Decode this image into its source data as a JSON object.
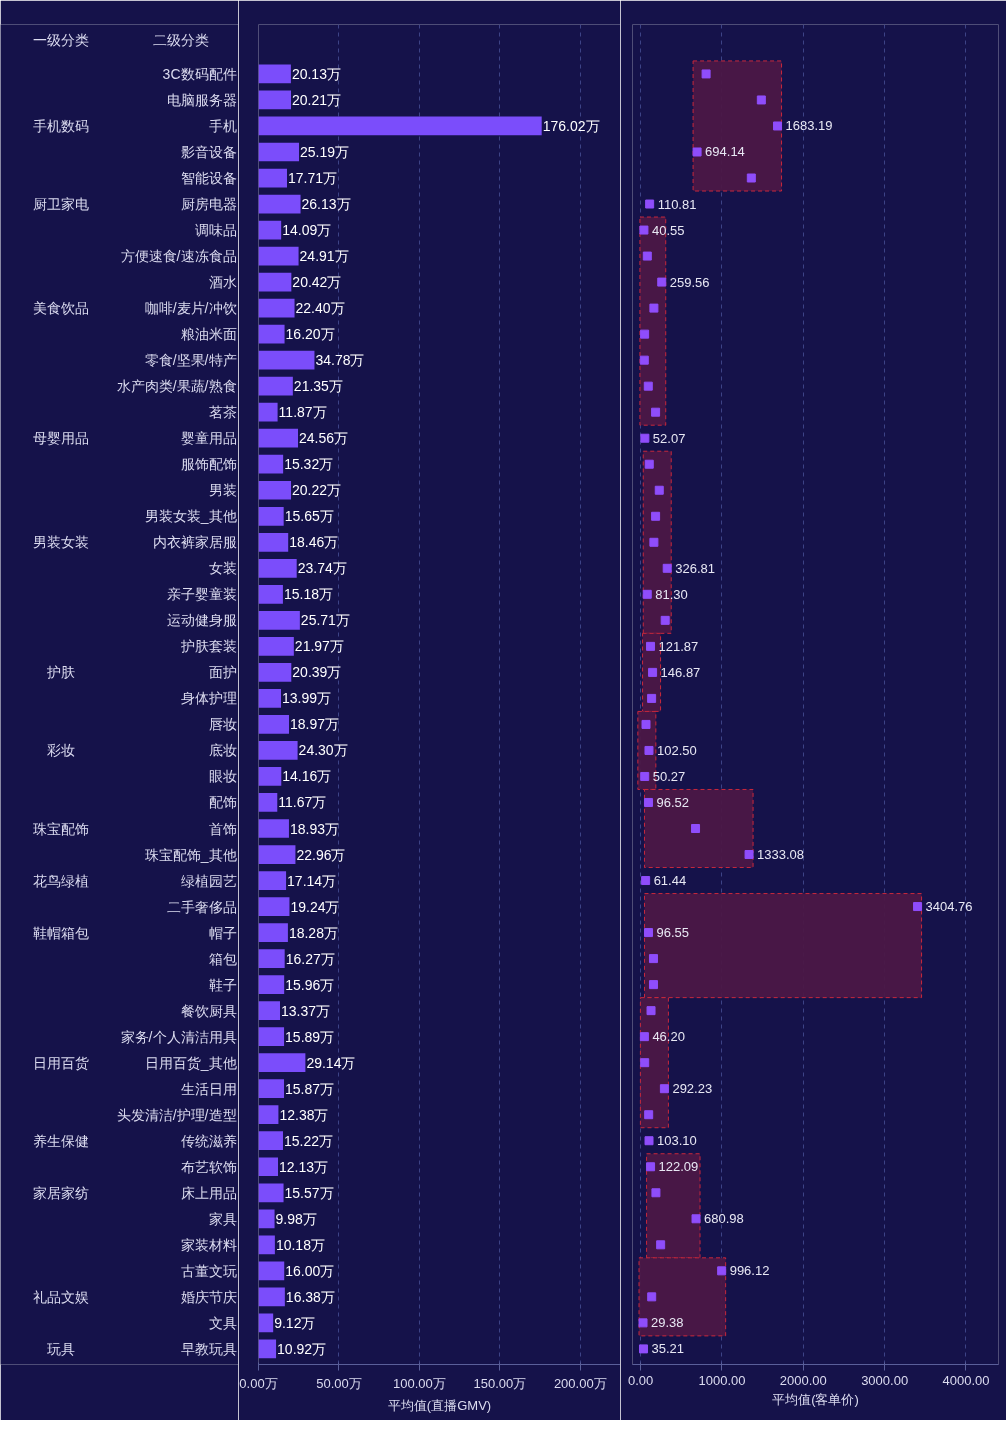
{
  "chart_data": [
    {
      "type": "bar",
      "orientation": "horizontal",
      "ylabel": "二级分类",
      "annotations": [
        "一级分类"
      ],
      "xlabel": "平均值(直播GMV)",
      "categories": [
        "3C数码配件",
        "电脑服务器",
        "手机",
        "影音设备",
        "智能设备",
        "厨房电器",
        "调味品",
        "方便速食/速冻食品",
        "酒水",
        "咖啡/麦片/冲饮",
        "粮油米面",
        "零食/坚果/特产",
        "水产肉类/果蔬/熟食",
        "茗茶",
        "婴童用品",
        "服饰配饰",
        "男装",
        "男装女装_其他",
        "内衣裤家居服",
        "女装",
        "亲子婴童装",
        "运动健身服",
        "护肤套装",
        "面护",
        "身体护理",
        "唇妆",
        "底妆",
        "眼妆",
        "配饰",
        "首饰",
        "珠宝配饰_其他",
        "绿植园艺",
        "二手奢侈品",
        "帽子",
        "箱包",
        "鞋子",
        "餐饮厨具",
        "家务/个人清洁用具",
        "日用百货_其他",
        "生活日用",
        "头发清洁/护理/造型",
        "传统滋养",
        "布艺软饰",
        "床上用品",
        "家具",
        "家装材料",
        "古董文玩",
        "婚庆节庆",
        "文具",
        "早教玩具"
      ],
      "y2_categories": [
        null,
        null,
        "手机数码",
        null,
        null,
        "厨卫家电",
        null,
        null,
        null,
        "美食饮品",
        null,
        null,
        null,
        null,
        "母婴用品",
        null,
        null,
        null,
        "男装女装",
        null,
        null,
        null,
        null,
        "护肤",
        null,
        null,
        "彩妆",
        null,
        null,
        "珠宝配饰",
        null,
        "花鸟绿植",
        null,
        "鞋帽箱包",
        null,
        null,
        null,
        null,
        "日用百货",
        null,
        null,
        "养生保健",
        null,
        "家居家纺",
        null,
        null,
        null,
        "礼品文娱",
        null,
        "玩具"
      ],
      "values": [
        20.13,
        20.21,
        176.02,
        25.19,
        17.71,
        26.13,
        14.09,
        24.91,
        20.42,
        22.4,
        16.2,
        34.78,
        21.35,
        11.87,
        24.56,
        15.32,
        20.22,
        15.65,
        18.46,
        23.74,
        15.18,
        25.71,
        21.97,
        20.39,
        13.99,
        18.97,
        24.3,
        14.16,
        11.67,
        18.93,
        22.96,
        17.14,
        19.24,
        18.28,
        16.27,
        15.96,
        13.37,
        15.89,
        29.14,
        15.87,
        12.38,
        15.22,
        12.13,
        15.57,
        9.98,
        10.18,
        16.0,
        16.38,
        9.12,
        10.92
      ],
      "value_labels": [
        "20.13万",
        "20.21万",
        "176.02万",
        "25.19万",
        "17.71万",
        "26.13万",
        "14.09万",
        "24.91万",
        "20.42万",
        "22.40万",
        "16.20万",
        "34.78万",
        "21.35万",
        "11.87万",
        "24.56万",
        "15.32万",
        "20.22万",
        "15.65万",
        "18.46万",
        "23.74万",
        "15.18万",
        "25.71万",
        "21.97万",
        "20.39万",
        "13.99万",
        "18.97万",
        "24.30万",
        "14.16万",
        "11.67万",
        "18.93万",
        "22.96万",
        "17.14万",
        "19.24万",
        "18.28万",
        "16.27万",
        "15.96万",
        "13.37万",
        "15.89万",
        "29.14万",
        "15.87万",
        "12.38万",
        "15.22万",
        "12.13万",
        "15.57万",
        "9.98万",
        "10.18万",
        "16.00万",
        "16.38万",
        "9.12万",
        "10.92万"
      ],
      "color": "#7b4dfb",
      "xlim": [
        0,
        225
      ],
      "xticks": [
        {
          "value": 0,
          "label": "0.00万"
        },
        {
          "value": 50,
          "label": "50.00万"
        },
        {
          "value": 100,
          "label": "100.00万"
        },
        {
          "value": 150,
          "label": "150.00万"
        },
        {
          "value": 200,
          "label": "200.00万"
        }
      ],
      "grid": "x"
    },
    {
      "type": "scatter",
      "orientation": "horizontal",
      "xlabel": "平均值(客单价)",
      "tick_labels": "x",
      "marker": "square",
      "categories": [
        "3C数码配件",
        "电脑服务器",
        "手机",
        "影音设备",
        "智能设备",
        "厨房电器",
        "调味品",
        "方便速食/速冻食品",
        "酒水",
        "咖啡/麦片/冲饮",
        "粮油米面",
        "零食/坚果/特产",
        "水产肉类/果蔬/熟食",
        "茗茶",
        "婴童用品",
        "服饰配饰",
        "男装",
        "男装女装_其他",
        "内衣裤家居服",
        "女装",
        "亲子婴童装",
        "运动健身服",
        "护肤套装",
        "面护",
        "身体护理",
        "唇妆",
        "底妆",
        "眼妆",
        "配饰",
        "首饰",
        "珠宝配饰_其他",
        "绿植园艺",
        "二手奢侈品",
        "帽子",
        "箱包",
        "鞋子",
        "餐饮厨具",
        "家务/个人清洁用具",
        "日用百货_其他",
        "生活日用",
        "头发清洁/护理/造型",
        "传统滋养",
        "布艺软饰",
        "床上用品",
        "家具",
        "家装材料",
        "古董文玩",
        "婚庆节庆",
        "文具",
        "早教玩具"
      ],
      "color": "#8f4dfb",
      "values": [
        805,
        1484,
        1683.19,
        694.14,
        1361,
        110.81,
        40.55,
        82,
        259.56,
        163,
        49,
        45,
        94,
        184,
        52.07,
        106,
        229,
        184,
        163,
        326.81,
        81.3,
        302,
        121.87,
        146.87,
        135,
        66,
        102.5,
        50.27,
        96.52,
        675,
        1333.08,
        61.44,
        3404.76,
        96.55,
        158,
        158,
        128,
        46.2,
        50,
        292.23,
        99,
        103.1,
        122.09,
        188,
        680.98,
        246,
        996.12,
        136,
        29.38,
        35.21
      ],
      "bands": [
        {
          "axis": "y",
          "from": "3C数码配件",
          "to": "智能设备",
          "color": "#4b1846"
        },
        {
          "axis": "y",
          "from": "调味品",
          "to": "茗茶",
          "color": "#4b1846"
        },
        {
          "axis": "y",
          "from": "服饰配饰",
          "to": "运动健身服",
          "color": "#4b1846"
        },
        {
          "axis": "y",
          "from": "护肤套装",
          "to": "身体护理",
          "color": "#4b1846"
        },
        {
          "axis": "y",
          "from": "唇妆",
          "to": "眼妆",
          "color": "#4b1846"
        },
        {
          "axis": "y",
          "from": "配饰",
          "to": "珠宝配饰_其他",
          "color": "#4b1846"
        },
        {
          "axis": "y",
          "from": "二手奢侈品",
          "to": "鞋子",
          "color": "#4b1846"
        },
        {
          "axis": "y",
          "from": "餐饮厨具",
          "to": "头发清洁/护理/造型",
          "color": "#4b1846"
        },
        {
          "axis": "y",
          "from": "布艺软饰",
          "to": "家装材料",
          "color": "#4b1846"
        },
        {
          "axis": "y",
          "from": "古董文玩",
          "to": "文具",
          "color": "#4b1846"
        }
      ],
      "xlim": [
        -100,
        4400
      ],
      "xticks": [
        {
          "value": 0,
          "label": "0.00"
        },
        {
          "value": 1000,
          "label": "1000.00"
        },
        {
          "value": 2000,
          "label": "2000.00"
        },
        {
          "value": 3000,
          "label": "3000.00"
        },
        {
          "value": 4000,
          "label": "4000.00"
        }
      ],
      "grid": "x",
      "annotations": [
        {
          "text": "694.14",
          "x": 694.14,
          "y": "影音设备"
        },
        {
          "text": "1683.19",
          "x": 1683.19,
          "y": "手机"
        },
        {
          "text": "110.81",
          "x": 110.81,
          "y": "厨房电器"
        },
        {
          "text": "40.55",
          "x": 40.55,
          "y": "调味品"
        },
        {
          "text": "259.56",
          "x": 259.56,
          "y": "酒水"
        },
        {
          "text": "52.07",
          "x": 52.07,
          "y": "婴童用品"
        },
        {
          "text": "81.30",
          "x": 81.3,
          "y": "亲子婴童装"
        },
        {
          "text": "326.81",
          "x": 326.81,
          "y": "女装"
        },
        {
          "text": "121.87",
          "x": 121.87,
          "y": "护肤套装"
        },
        {
          "text": "146.87",
          "x": 146.87,
          "y": "面护"
        },
        {
          "text": "50.27",
          "x": 50.27,
          "y": "眼妆"
        },
        {
          "text": "102.50",
          "x": 102.5,
          "y": "底妆"
        },
        {
          "text": "96.52",
          "x": 96.52,
          "y": "配饰"
        },
        {
          "text": "1333.08",
          "x": 1333.08,
          "y": "珠宝配饰_其他"
        },
        {
          "text": "61.44",
          "x": 61.44,
          "y": "绿植园艺"
        },
        {
          "text": "96.55",
          "x": 96.55,
          "y": "帽子"
        },
        {
          "text": "3404.76",
          "x": 3404.76,
          "y": "二手奢侈品"
        },
        {
          "text": "46.20",
          "x": 46.2,
          "y": "家务/个人清洁用具"
        },
        {
          "text": "292.23",
          "x": 292.23,
          "y": "生活日用"
        },
        {
          "text": "103.10",
          "x": 103.1,
          "y": "传统滋养"
        },
        {
          "text": "122.09",
          "x": 122.09,
          "y": "布艺软饰"
        },
        {
          "text": "680.98",
          "x": 680.98,
          "y": "家具"
        },
        {
          "text": "29.38",
          "x": 29.38,
          "y": "文具"
        },
        {
          "text": "996.12",
          "x": 996.12,
          "y": "古董文玩"
        },
        {
          "text": "35.21",
          "x": 35.21,
          "y": "早教玩具"
        }
      ]
    }
  ]
}
